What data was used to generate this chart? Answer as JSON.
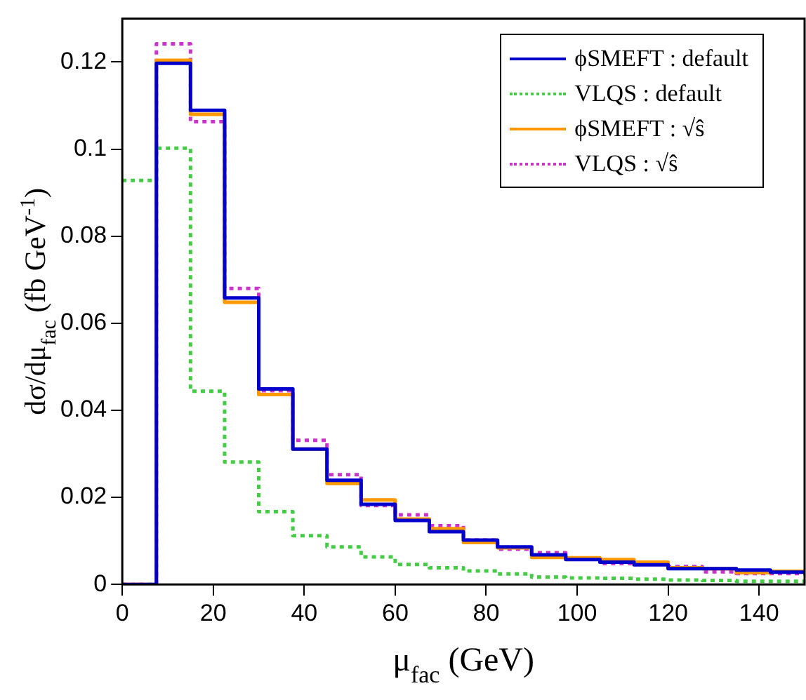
{
  "chart_data": {
    "type": "histogram",
    "xlabel": "μ$_{fac}$ (GeV)",
    "ylabel": "dσ/dμ$_{fac}$ (fb GeV$^{-1}$)",
    "bins": [
      0,
      7.5,
      15,
      22.5,
      30,
      37.5,
      45,
      52.5,
      60,
      67.5,
      75,
      82.5,
      90,
      97.5,
      105,
      112.5,
      120,
      127.5,
      135,
      142.5,
      150
    ],
    "series": [
      {
        "name": "ϕSMEFT : default",
        "color": "#0000cc",
        "line_style": "solid",
        "values": [
          0,
          0.1197,
          0.1089,
          0.0658,
          0.0449,
          0.0311,
          0.0239,
          0.0184,
          0.0147,
          0.0121,
          0.0102,
          0.0086,
          0.0068,
          0.0057,
          0.0051,
          0.0045,
          0.0036,
          0.0036,
          0.0033,
          0.0028
        ]
      },
      {
        "name": "VLQS : default",
        "color": "#44cc44",
        "line_style": "dotted",
        "values": [
          0.0928,
          0.1002,
          0.0444,
          0.0281,
          0.0167,
          0.0112,
          0.0086,
          0.0063,
          0.0046,
          0.0038,
          0.0031,
          0.0024,
          0.0017,
          0.0015,
          0.0014,
          0.0012,
          0.001,
          0.0009,
          0.0007,
          0.0007
        ]
      },
      {
        "name": "ϕSMEFT : √ŝ",
        "color": "#ff9900",
        "line_style": "solid",
        "values": [
          0,
          0.1204,
          0.108,
          0.0648,
          0.0436,
          0.0311,
          0.0232,
          0.0194,
          0.015,
          0.0128,
          0.0096,
          0.0084,
          0.0062,
          0.0061,
          0.0057,
          0.0051,
          0.0038,
          0.0036,
          0.0027,
          0.003
        ]
      },
      {
        "name": "VLQS : √ŝ",
        "color": "#cc33cc",
        "line_style": "dotted",
        "values": [
          0,
          0.1242,
          0.1063,
          0.068,
          0.0445,
          0.0331,
          0.0252,
          0.0181,
          0.016,
          0.0135,
          0.0102,
          0.0081,
          0.0073,
          0.0059,
          0.0048,
          0.0048,
          0.0041,
          0.0029,
          0.0025,
          0.0025
        ]
      }
    ],
    "xlim": [
      0,
      150
    ],
    "xticks": [
      0,
      20,
      40,
      60,
      80,
      100,
      120,
      140
    ],
    "ylim": [
      0,
      0.13
    ],
    "yticks": [
      0,
      0.02,
      0.04,
      0.06,
      0.08,
      0.1,
      0.12
    ],
    "grid": false,
    "legend": "top right"
  }
}
